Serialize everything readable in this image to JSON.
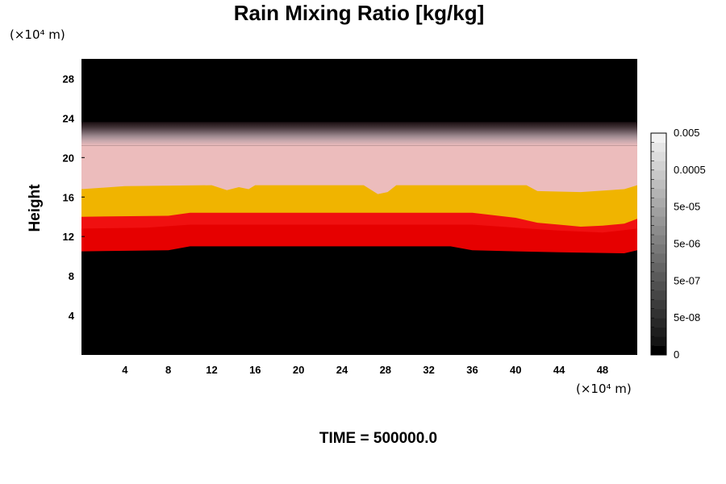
{
  "chart_data": {
    "type": "heatmap",
    "title": "Rain Mixing Ratio [kg/kg]",
    "ylabel": "Height",
    "x_unit": "(×10⁴ m)",
    "y_unit": "(×10⁴ m)",
    "x_ticks": [
      "4",
      "8",
      "12",
      "16",
      "20",
      "24",
      "28",
      "32",
      "36",
      "40",
      "44",
      "48"
    ],
    "x_tick_values": [
      4,
      8,
      12,
      16,
      20,
      24,
      28,
      32,
      36,
      40,
      44,
      48
    ],
    "y_ticks": [
      "4",
      "8",
      "12",
      "16",
      "20",
      "24",
      "28"
    ],
    "y_tick_values": [
      4,
      8,
      12,
      16,
      20,
      24,
      28
    ],
    "xlim": [
      0,
      51.2
    ],
    "ylim": [
      0,
      30
    ],
    "footer": "TIME = 500000.0",
    "colorbar": {
      "labels": [
        "0",
        "5e-08",
        "5e-07",
        "5e-06",
        "5e-05",
        "0.0005",
        "0.005"
      ],
      "colors": [
        "#000000",
        "#141414",
        "#1e1e1e",
        "#282828",
        "#323232",
        "#3c3c3c",
        "#464646",
        "#505050",
        "#5a5a5a",
        "#646464",
        "#6e6e6e",
        "#787878",
        "#828282",
        "#8c8c8c",
        "#969696",
        "#a0a0a0",
        "#aaaaaa",
        "#b4b4b4",
        "#bebebe",
        "#c8c8c8",
        "#d2d2d2",
        "#dcdcdc",
        "#e6e6e6",
        "#f2f2f2"
      ]
    },
    "layers": [
      {
        "name": "black-lower",
        "color": "#000000",
        "top": [
          [
            0,
            10.5
          ],
          [
            8,
            10.6
          ],
          [
            10,
            11.0
          ],
          [
            34,
            11.0
          ],
          [
            36,
            10.6
          ],
          [
            44,
            10.4
          ],
          [
            50,
            10.3
          ],
          [
            51.2,
            10.6
          ]
        ]
      },
      {
        "name": "red",
        "color": "#e60000",
        "top": [
          [
            0,
            12.8
          ],
          [
            6,
            12.9
          ],
          [
            10,
            13.2
          ],
          [
            36,
            13.2
          ],
          [
            40,
            12.9
          ],
          [
            44,
            12.6
          ],
          [
            48,
            12.4
          ],
          [
            51.2,
            12.8
          ]
        ]
      },
      {
        "name": "dark-red",
        "color": "#f01010",
        "top": [
          [
            0,
            14.0
          ],
          [
            8,
            14.1
          ],
          [
            10,
            14.4
          ],
          [
            36,
            14.4
          ],
          [
            40,
            13.9
          ],
          [
            42,
            13.4
          ],
          [
            44,
            13.2
          ],
          [
            46,
            13.0
          ],
          [
            48,
            13.1
          ],
          [
            50,
            13.3
          ],
          [
            51.2,
            13.8
          ]
        ]
      },
      {
        "name": "yellow",
        "color": "#f0b400",
        "top": [
          [
            0,
            16.8
          ],
          [
            4,
            17.1
          ],
          [
            12,
            17.2
          ],
          [
            13.4,
            16.7
          ],
          [
            14.5,
            17.0
          ],
          [
            15.4,
            16.8
          ],
          [
            16,
            17.2
          ],
          [
            26,
            17.2
          ],
          [
            27.3,
            16.3
          ],
          [
            28.2,
            16.5
          ],
          [
            29,
            17.2
          ],
          [
            41,
            17.2
          ],
          [
            42,
            16.6
          ],
          [
            46,
            16.5
          ],
          [
            50,
            16.8
          ],
          [
            51.2,
            17.2
          ]
        ]
      },
      {
        "name": "pink",
        "color": "#ecbcbc",
        "top": [
          [
            0,
            21.2
          ],
          [
            51.2,
            21.2
          ]
        ]
      }
    ],
    "gradient_band": {
      "bottom": 21.2,
      "top": 23.6,
      "colors": [
        "#ecbcbc",
        "#c8a8ad",
        "#9e8a90",
        "#6d5c62",
        "#3e2f33",
        "#1a0f12"
      ]
    },
    "background": "#000000"
  }
}
